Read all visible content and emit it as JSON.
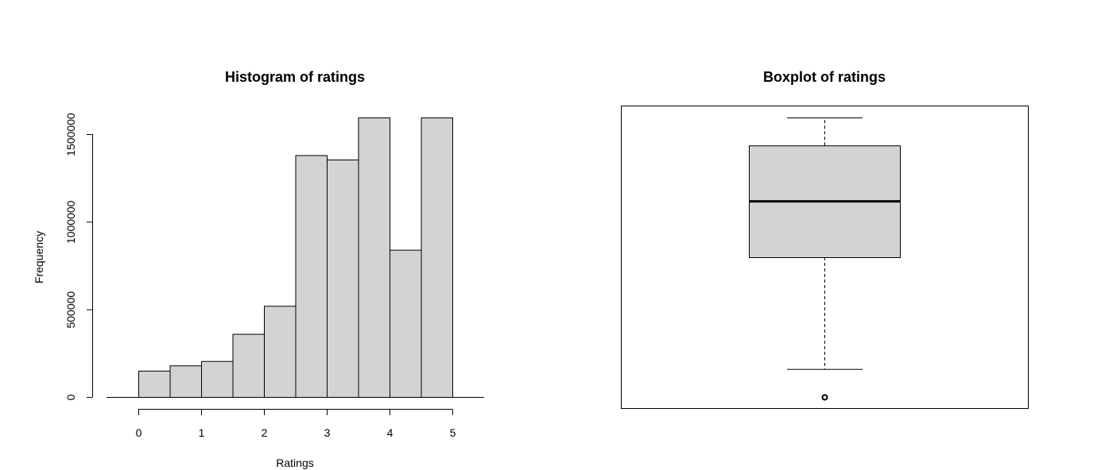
{
  "chart_data": [
    {
      "type": "bar",
      "title": "Histogram of ratings",
      "xlabel": "Ratings",
      "ylabel": "Frequency",
      "bin_edges": [
        0,
        0.5,
        1,
        1.5,
        2,
        2.5,
        3,
        3.5,
        4,
        4.5,
        5
      ],
      "values": [
        150000,
        180000,
        205000,
        360000,
        520000,
        1380000,
        1355000,
        1595000,
        840000,
        1595000
      ],
      "xlim": [
        -0.5,
        5.5
      ],
      "ylim": [
        0,
        1640000
      ],
      "xticks": [
        0,
        1,
        2,
        3,
        4,
        5
      ],
      "yticks": [
        0,
        500000,
        1000000,
        1500000
      ],
      "grid": false,
      "bar_color": "#d3d3d3"
    },
    {
      "type": "boxplot",
      "title": "Boxplot of ratings",
      "whisker_low": 0.5,
      "q1": 2.5,
      "median": 3.5,
      "q3": 4.5,
      "whisker_high": 5,
      "outliers": [
        0
      ],
      "ylim": [
        -0.2,
        5.2
      ],
      "box_color": "#d3d3d3"
    }
  ]
}
